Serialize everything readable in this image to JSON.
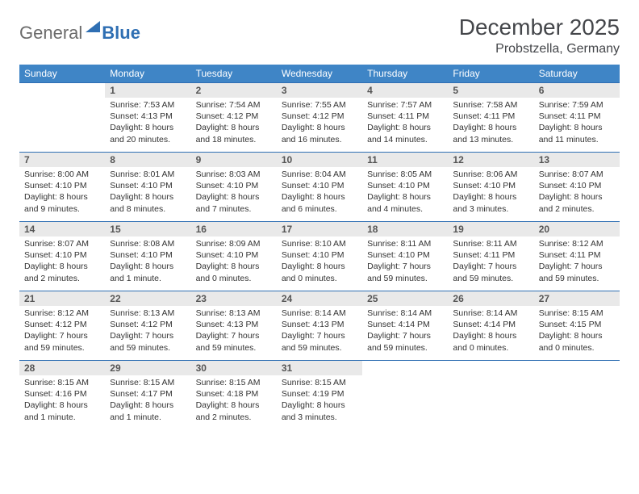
{
  "logo": {
    "general": "General",
    "blue": "Blue"
  },
  "title": "December 2025",
  "location": "Probstzella, Germany",
  "colors": {
    "header_bg": "#3f85c6",
    "border": "#2f6fb3",
    "daynum_bg": "#e9e9e9",
    "text": "#333333"
  },
  "weekdays": [
    "Sunday",
    "Monday",
    "Tuesday",
    "Wednesday",
    "Thursday",
    "Friday",
    "Saturday"
  ],
  "weeks": [
    [
      null,
      {
        "n": "1",
        "sr": "Sunrise: 7:53 AM",
        "ss": "Sunset: 4:13 PM",
        "d1": "Daylight: 8 hours",
        "d2": "and 20 minutes."
      },
      {
        "n": "2",
        "sr": "Sunrise: 7:54 AM",
        "ss": "Sunset: 4:12 PM",
        "d1": "Daylight: 8 hours",
        "d2": "and 18 minutes."
      },
      {
        "n": "3",
        "sr": "Sunrise: 7:55 AM",
        "ss": "Sunset: 4:12 PM",
        "d1": "Daylight: 8 hours",
        "d2": "and 16 minutes."
      },
      {
        "n": "4",
        "sr": "Sunrise: 7:57 AM",
        "ss": "Sunset: 4:11 PM",
        "d1": "Daylight: 8 hours",
        "d2": "and 14 minutes."
      },
      {
        "n": "5",
        "sr": "Sunrise: 7:58 AM",
        "ss": "Sunset: 4:11 PM",
        "d1": "Daylight: 8 hours",
        "d2": "and 13 minutes."
      },
      {
        "n": "6",
        "sr": "Sunrise: 7:59 AM",
        "ss": "Sunset: 4:11 PM",
        "d1": "Daylight: 8 hours",
        "d2": "and 11 minutes."
      }
    ],
    [
      {
        "n": "7",
        "sr": "Sunrise: 8:00 AM",
        "ss": "Sunset: 4:10 PM",
        "d1": "Daylight: 8 hours",
        "d2": "and 9 minutes."
      },
      {
        "n": "8",
        "sr": "Sunrise: 8:01 AM",
        "ss": "Sunset: 4:10 PM",
        "d1": "Daylight: 8 hours",
        "d2": "and 8 minutes."
      },
      {
        "n": "9",
        "sr": "Sunrise: 8:03 AM",
        "ss": "Sunset: 4:10 PM",
        "d1": "Daylight: 8 hours",
        "d2": "and 7 minutes."
      },
      {
        "n": "10",
        "sr": "Sunrise: 8:04 AM",
        "ss": "Sunset: 4:10 PM",
        "d1": "Daylight: 8 hours",
        "d2": "and 6 minutes."
      },
      {
        "n": "11",
        "sr": "Sunrise: 8:05 AM",
        "ss": "Sunset: 4:10 PM",
        "d1": "Daylight: 8 hours",
        "d2": "and 4 minutes."
      },
      {
        "n": "12",
        "sr": "Sunrise: 8:06 AM",
        "ss": "Sunset: 4:10 PM",
        "d1": "Daylight: 8 hours",
        "d2": "and 3 minutes."
      },
      {
        "n": "13",
        "sr": "Sunrise: 8:07 AM",
        "ss": "Sunset: 4:10 PM",
        "d1": "Daylight: 8 hours",
        "d2": "and 2 minutes."
      }
    ],
    [
      {
        "n": "14",
        "sr": "Sunrise: 8:07 AM",
        "ss": "Sunset: 4:10 PM",
        "d1": "Daylight: 8 hours",
        "d2": "and 2 minutes."
      },
      {
        "n": "15",
        "sr": "Sunrise: 8:08 AM",
        "ss": "Sunset: 4:10 PM",
        "d1": "Daylight: 8 hours",
        "d2": "and 1 minute."
      },
      {
        "n": "16",
        "sr": "Sunrise: 8:09 AM",
        "ss": "Sunset: 4:10 PM",
        "d1": "Daylight: 8 hours",
        "d2": "and 0 minutes."
      },
      {
        "n": "17",
        "sr": "Sunrise: 8:10 AM",
        "ss": "Sunset: 4:10 PM",
        "d1": "Daylight: 8 hours",
        "d2": "and 0 minutes."
      },
      {
        "n": "18",
        "sr": "Sunrise: 8:11 AM",
        "ss": "Sunset: 4:10 PM",
        "d1": "Daylight: 7 hours",
        "d2": "and 59 minutes."
      },
      {
        "n": "19",
        "sr": "Sunrise: 8:11 AM",
        "ss": "Sunset: 4:11 PM",
        "d1": "Daylight: 7 hours",
        "d2": "and 59 minutes."
      },
      {
        "n": "20",
        "sr": "Sunrise: 8:12 AM",
        "ss": "Sunset: 4:11 PM",
        "d1": "Daylight: 7 hours",
        "d2": "and 59 minutes."
      }
    ],
    [
      {
        "n": "21",
        "sr": "Sunrise: 8:12 AM",
        "ss": "Sunset: 4:12 PM",
        "d1": "Daylight: 7 hours",
        "d2": "and 59 minutes."
      },
      {
        "n": "22",
        "sr": "Sunrise: 8:13 AM",
        "ss": "Sunset: 4:12 PM",
        "d1": "Daylight: 7 hours",
        "d2": "and 59 minutes."
      },
      {
        "n": "23",
        "sr": "Sunrise: 8:13 AM",
        "ss": "Sunset: 4:13 PM",
        "d1": "Daylight: 7 hours",
        "d2": "and 59 minutes."
      },
      {
        "n": "24",
        "sr": "Sunrise: 8:14 AM",
        "ss": "Sunset: 4:13 PM",
        "d1": "Daylight: 7 hours",
        "d2": "and 59 minutes."
      },
      {
        "n": "25",
        "sr": "Sunrise: 8:14 AM",
        "ss": "Sunset: 4:14 PM",
        "d1": "Daylight: 7 hours",
        "d2": "and 59 minutes."
      },
      {
        "n": "26",
        "sr": "Sunrise: 8:14 AM",
        "ss": "Sunset: 4:14 PM",
        "d1": "Daylight: 8 hours",
        "d2": "and 0 minutes."
      },
      {
        "n": "27",
        "sr": "Sunrise: 8:15 AM",
        "ss": "Sunset: 4:15 PM",
        "d1": "Daylight: 8 hours",
        "d2": "and 0 minutes."
      }
    ],
    [
      {
        "n": "28",
        "sr": "Sunrise: 8:15 AM",
        "ss": "Sunset: 4:16 PM",
        "d1": "Daylight: 8 hours",
        "d2": "and 1 minute."
      },
      {
        "n": "29",
        "sr": "Sunrise: 8:15 AM",
        "ss": "Sunset: 4:17 PM",
        "d1": "Daylight: 8 hours",
        "d2": "and 1 minute."
      },
      {
        "n": "30",
        "sr": "Sunrise: 8:15 AM",
        "ss": "Sunset: 4:18 PM",
        "d1": "Daylight: 8 hours",
        "d2": "and 2 minutes."
      },
      {
        "n": "31",
        "sr": "Sunrise: 8:15 AM",
        "ss": "Sunset: 4:19 PM",
        "d1": "Daylight: 8 hours",
        "d2": "and 3 minutes."
      },
      null,
      null,
      null
    ]
  ]
}
